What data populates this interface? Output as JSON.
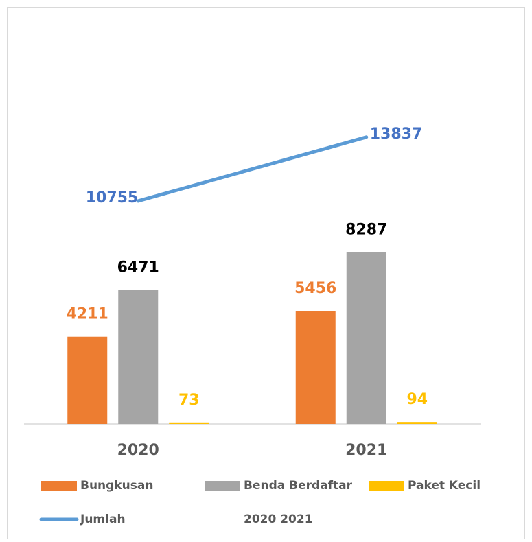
{
  "chart_data": {
    "type": "bar",
    "categories": [
      "2020",
      "2021"
    ],
    "series": [
      {
        "name": "Bungkusan",
        "color": "#ed7d31",
        "label_color": "#ed7d31",
        "values": [
          4211,
          5456
        ]
      },
      {
        "name": "Benda Berdaftar",
        "color": "#a5a5a5",
        "label_color": "#000000",
        "values": [
          6471,
          8287
        ]
      },
      {
        "name": "Paket Kecil",
        "color": "#ffc000",
        "label_color": "#ffc000",
        "values": [
          73,
          94
        ]
      },
      {
        "name": "Jumlah",
        "type": "line",
        "color": "#5b9bd5",
        "label_color": "#4472c4",
        "values": [
          10755,
          13837
        ]
      }
    ],
    "legend_note": "2020 2021",
    "ylim": [
      0,
      18000
    ],
    "grid": false
  }
}
